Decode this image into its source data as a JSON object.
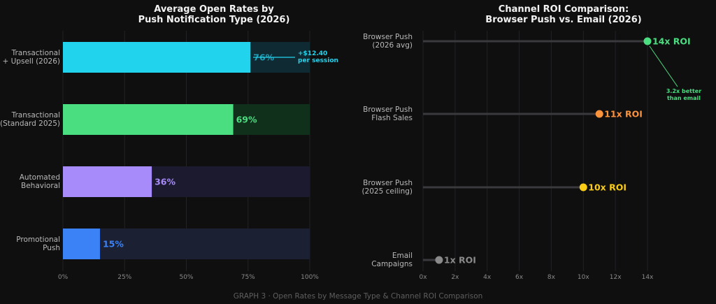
{
  "chart_data": [
    {
      "type": "bar",
      "orientation": "horizontal",
      "title_lines": [
        "Average Open Rates by",
        "Push Notification Type (2026)"
      ],
      "categories": [
        [
          "Transactional",
          "+ Upsell (2026)"
        ],
        [
          "Transactional",
          "(Standard 2025)"
        ],
        [
          "Automated",
          "Behavioral"
        ],
        [
          "Promotional",
          "Push"
        ]
      ],
      "values": [
        76,
        69,
        36,
        15
      ],
      "value_labels": [
        "76%",
        "69%",
        "36%",
        "15%"
      ],
      "colors": [
        "#22d3ee",
        "#4ade80",
        "#a78bfa",
        "#3b82f6"
      ],
      "track_colors": [
        "#0f2a33",
        "#10301c",
        "#1c1a2e",
        "#1c2033"
      ],
      "xlim": [
        0,
        100
      ],
      "xticks": [
        "0%",
        "25%",
        "50%",
        "75%",
        "100%"
      ],
      "annotation": {
        "lines": [
          "+$12.40",
          "per session"
        ],
        "color": "#22d3ee"
      },
      "grid": true
    },
    {
      "type": "lollipop",
      "orientation": "horizontal",
      "title_lines": [
        "Channel ROI Comparison:",
        "Browser Push vs. Email (2026)"
      ],
      "categories": [
        [
          "Browser Push",
          "(2026 avg)"
        ],
        [
          "Browser Push",
          "Flash Sales"
        ],
        [
          "Browser Push",
          "(2025 ceiling)"
        ],
        [
          "Email",
          "Campaigns"
        ]
      ],
      "values": [
        14,
        11,
        10,
        1
      ],
      "value_labels": [
        "14x ROI",
        "11x ROI",
        "10x ROI",
        "1x ROI"
      ],
      "colors": [
        "#4ade80",
        "#fb923c",
        "#facc15",
        "#8a8a8a"
      ],
      "xlim": [
        0,
        14
      ],
      "xticks": [
        "0x",
        "2x",
        "4x",
        "6x",
        "8x",
        "10x",
        "12x",
        "14x"
      ],
      "annotation": {
        "lines": [
          "3.2x better",
          "than email"
        ],
        "color": "#4ade80"
      },
      "grid": true
    }
  ],
  "footer": "GRAPH 3  ·  Open Rates by Message Type & Channel ROI Comparison"
}
